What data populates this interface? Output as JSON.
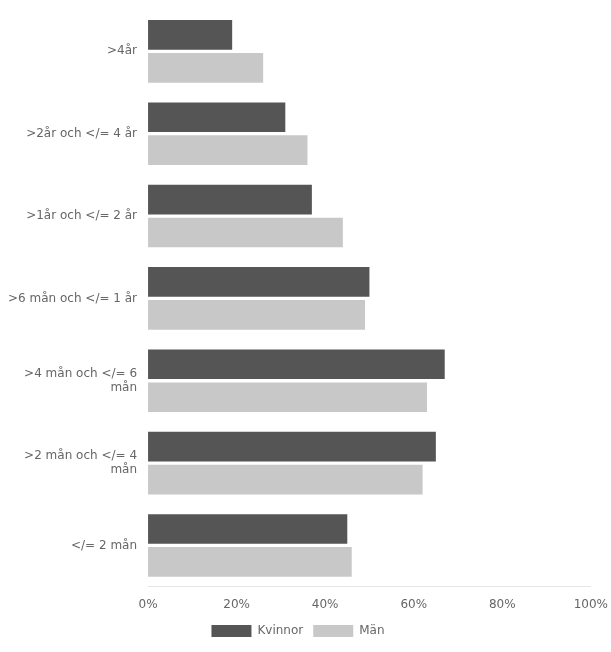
{
  "chart_data": {
    "type": "bar",
    "orientation": "horizontal",
    "categories": [
      "</= 2 mån",
      ">2 mån och </= 4\nmån",
      ">4 mån och </= 6\nmån",
      ">6 mån och </= 1 år",
      ">1år och </= 2 år",
      ">2år och </= 4 år",
      ">4år"
    ],
    "series": [
      {
        "name": "Kvinnor",
        "color": "#555555",
        "values": [
          45,
          65,
          67,
          50,
          37,
          31,
          19
        ]
      },
      {
        "name": "Män",
        "color": "#c8c8c8",
        "values": [
          46,
          62,
          63,
          49,
          44,
          36,
          26
        ]
      }
    ],
    "xlim": [
      0,
      100
    ],
    "xticks": [
      {
        "value": 0,
        "label": "0%"
      },
      {
        "value": 20,
        "label": "20%"
      },
      {
        "value": 40,
        "label": "40%"
      },
      {
        "value": 60,
        "label": "60%"
      },
      {
        "value": 80,
        "label": "80%"
      },
      {
        "value": 100,
        "label": "100%"
      }
    ],
    "grid": false,
    "legend": "bottom"
  }
}
